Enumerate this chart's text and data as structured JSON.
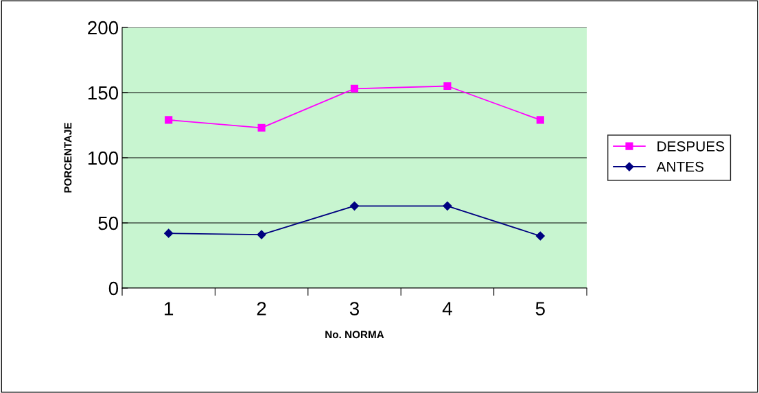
{
  "chart_data": {
    "type": "line",
    "xlabel": "No. NORMA",
    "ylabel": "PORCENTAJE",
    "categories": [
      "1",
      "2",
      "3",
      "4",
      "5"
    ],
    "series": [
      {
        "name": "DESPUES",
        "color": "#ff00ff",
        "marker": "square",
        "values": [
          129,
          123,
          153,
          155,
          129
        ]
      },
      {
        "name": "ANTES",
        "color": "#000080",
        "marker": "diamond",
        "values": [
          42,
          41,
          63,
          63,
          40
        ]
      }
    ],
    "ylim": [
      0,
      200
    ],
    "yticks": [
      0,
      50,
      100,
      150,
      200
    ],
    "grid": "y",
    "legend": "right",
    "line_style": "solid"
  }
}
